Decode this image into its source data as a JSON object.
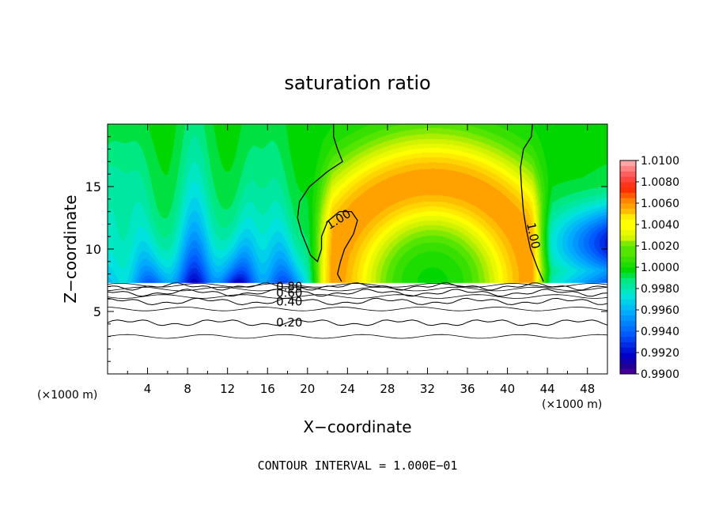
{
  "chart_data": {
    "type": "heatmap",
    "title": "saturation ratio",
    "xlabel": "X−coordinate",
    "ylabel": "Z−coordinate",
    "x_unit_label_left": "(×1000 m)",
    "x_unit_label_right": "(×1000 m)",
    "footer": "CONTOUR INTERVAL = 1.000E−01",
    "xlim": [
      0,
      50
    ],
    "ylim": [
      0,
      20
    ],
    "x_ticks": [
      4,
      8,
      12,
      16,
      20,
      24,
      28,
      32,
      36,
      40,
      44,
      48
    ],
    "y_ticks": [
      5,
      10,
      15
    ],
    "colorbar": {
      "range": [
        0.99,
        1.01
      ],
      "ticks": [
        "0.9900",
        "0.9920",
        "0.9940",
        "0.9960",
        "0.9980",
        "1.0000",
        "1.0020",
        "1.0040",
        "1.0060",
        "1.0080",
        "1.0100"
      ]
    },
    "contours": [
      {
        "level": 0.2,
        "label": "0.20",
        "z_approx": 4.1
      },
      {
        "level": 0.4,
        "label": "0.40",
        "z_approx": 5.8
      },
      {
        "level": 0.6,
        "label": "0.60",
        "z_approx": 6.5
      },
      {
        "level": 0.8,
        "label": "0.80",
        "z_approx": 7.0
      },
      {
        "level": 1.0,
        "label": "1.00",
        "z_approx": null
      }
    ],
    "features": {
      "cloud_base_z": 7.3,
      "supersaturated_arch_center_x": 32.5,
      "supersaturated_arch_top_z": 15.8
    }
  }
}
